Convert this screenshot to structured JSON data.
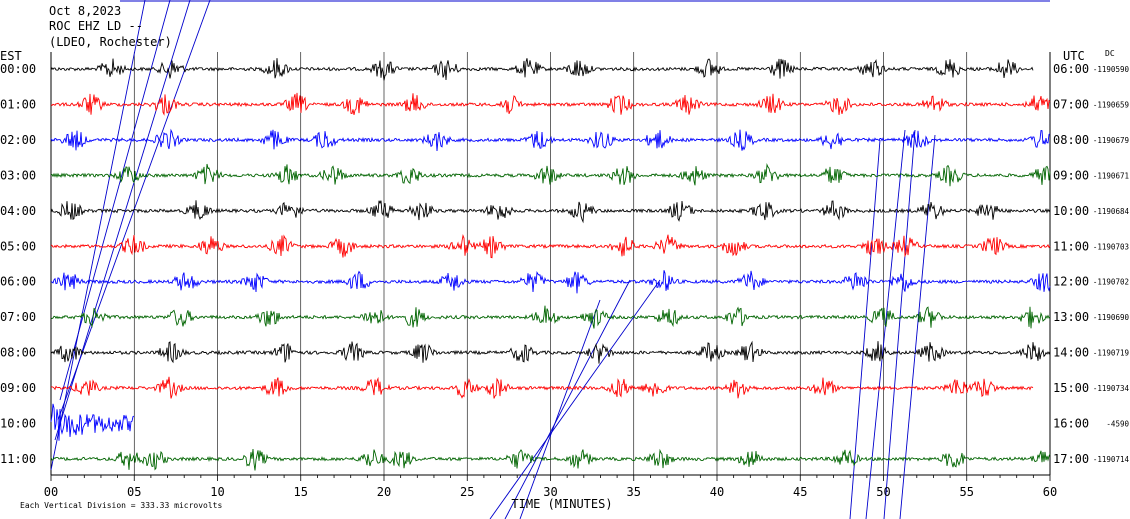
{
  "header": {
    "date": "Oct 8,2023",
    "station": "ROC EHZ LD --",
    "location": "(LDEO, Rochester)"
  },
  "left_axis_label": "EST",
  "right_axis_label": "UTC",
  "dc_label": "DC",
  "xlabel": "TIME (MINUTES)",
  "footer_note": "Each Vertical Division =  333.33 microvolts",
  "colors": {
    "black": "#000000",
    "red": "#ff0000",
    "blue": "#0000ff",
    "green": "#006400",
    "grid": "#000000",
    "overlay": "#0000cc"
  },
  "chart_data": {
    "type": "line",
    "title": "ROC EHZ LD --",
    "xlabel": "TIME (MINUTES)",
    "xlim": [
      0,
      60
    ],
    "x_ticks": [
      "00",
      "05",
      "10",
      "15",
      "20",
      "25",
      "30",
      "35",
      "40",
      "45",
      "50",
      "55",
      "60"
    ],
    "series": [
      {
        "est": "00:00",
        "utc": "06:00",
        "dc": "-1190590",
        "color": "black",
        "x_end": 59
      },
      {
        "est": "01:00",
        "utc": "07:00",
        "dc": "-1190659",
        "color": "red",
        "x_end": 60
      },
      {
        "est": "02:00",
        "utc": "08:00",
        "dc": "-1190679",
        "color": "blue",
        "x_end": 60
      },
      {
        "est": "03:00",
        "utc": "09:00",
        "dc": "-1190671",
        "color": "green",
        "x_end": 60
      },
      {
        "est": "04:00",
        "utc": "10:00",
        "dc": "-1190684",
        "color": "black",
        "x_end": 60
      },
      {
        "est": "05:00",
        "utc": "11:00",
        "dc": "-1190703",
        "color": "red",
        "x_end": 60
      },
      {
        "est": "06:00",
        "utc": "12:00",
        "dc": "-1190702",
        "color": "blue",
        "x_end": 60
      },
      {
        "est": "07:00",
        "utc": "13:00",
        "dc": "-1190690",
        "color": "green",
        "x_end": 60
      },
      {
        "est": "08:00",
        "utc": "14:00",
        "dc": "-1190719",
        "color": "black",
        "x_end": 60
      },
      {
        "est": "09:00",
        "utc": "15:00",
        "dc": "-1190734",
        "color": "red",
        "x_end": 59
      },
      {
        "est": "10:00",
        "utc": "16:00",
        "dc": "-4590",
        "color": "blue",
        "x_end": 5
      },
      {
        "est": "11:00",
        "utc": "17:00",
        "dc": "-1190714",
        "color": "green",
        "x_end": 60
      }
    ]
  }
}
